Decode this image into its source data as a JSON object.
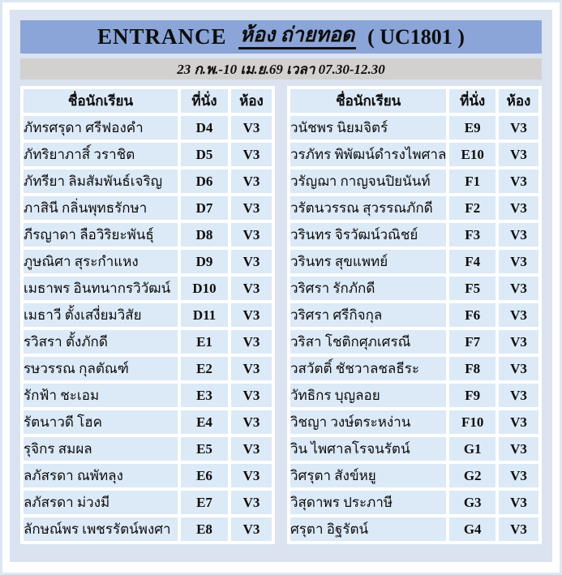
{
  "header": {
    "title_left": "ENTRANCE",
    "title_room": "ห้อง ถ่ายทอด",
    "title_code": "( UC1801 )",
    "schedule": "23 ก.พ.-10 เม.ย.69 เวลา 07.30-12.30"
  },
  "columns": {
    "name": "ชื่อนักเรียน",
    "seat": "ที่นั่ง",
    "room": "ห้อง"
  },
  "colors": {
    "title_band": "#8ba5d8",
    "schedule_band": "#d2d1d0",
    "panel_background": "#dae3ef",
    "cell_background": "#dce9f6",
    "outer_frame": "#dde7f2",
    "text": "#0d0d0d"
  },
  "tables": [
    {
      "rows": [
        {
          "name": "ภัทรศรุดา ศรีฟองคำ",
          "seat": "D4",
          "room": "V3"
        },
        {
          "name": "ภัทริยาภาสิ์ วราชิต",
          "seat": "D5",
          "room": "V3"
        },
        {
          "name": "ภัทรียา ลิมสัมพันธ์เจริญ",
          "seat": "D6",
          "room": "V3"
        },
        {
          "name": "ภาสินี กลิ่นพุทธรักษา",
          "seat": "D7",
          "room": "V3"
        },
        {
          "name": "ภีรญาดา ลือวิริยะพันธุ์",
          "seat": "D8",
          "room": "V3"
        },
        {
          "name": "ภูษณิศา สุระกำแหง",
          "seat": "D9",
          "room": "V3"
        },
        {
          "name": "เมธาพร อินทนากรวิวัฒน์",
          "seat": "D10",
          "room": "V3"
        },
        {
          "name": "เมธาวี ตั้งเสงี่ยมวิสัย",
          "seat": "D11",
          "room": "V3"
        },
        {
          "name": "รวิสรา ตั้งภักดี",
          "seat": "E1",
          "room": "V3"
        },
        {
          "name": "รษวรรณ กุลตัณฑ์",
          "seat": "E2",
          "room": "V3"
        },
        {
          "name": "รักฟ้า ชะเอม",
          "seat": "E3",
          "room": "V3"
        },
        {
          "name": "รัตนาวดี โฮค",
          "seat": "E4",
          "room": "V3"
        },
        {
          "name": "รุจิกร สมผล",
          "seat": "E5",
          "room": "V3"
        },
        {
          "name": "ลภัสรดา ณพัทลุง",
          "seat": "E6",
          "room": "V3"
        },
        {
          "name": "ลภัสรดา ม่วงมี",
          "seat": "E7",
          "room": "V3"
        },
        {
          "name": "ลักษณ์พร เพชรรัตน์พงศา",
          "seat": "E8",
          "room": "V3"
        }
      ]
    },
    {
      "rows": [
        {
          "name": "วนัชพร นิยมจิตร์",
          "seat": "E9",
          "room": "V3"
        },
        {
          "name": "วรภัทร พิพัฒน์ดำรงไพศาล",
          "seat": "E10",
          "room": "V3"
        },
        {
          "name": "วรัญฌา กาญจนปิยนันท์",
          "seat": "F1",
          "room": "V3"
        },
        {
          "name": "วรัตนวรรณ สุวรรณภักดี",
          "seat": "F2",
          "room": "V3"
        },
        {
          "name": "วรินทร จิรวัฒน์วณิชย์",
          "seat": "F3",
          "room": "V3"
        },
        {
          "name": "วรินทร สุขแพทย์",
          "seat": "F4",
          "room": "V3"
        },
        {
          "name": "วริศรา รักภักดี",
          "seat": "F5",
          "room": "V3"
        },
        {
          "name": "วริศรา ศรีกิจกุล",
          "seat": "F6",
          "room": "V3"
        },
        {
          "name": "วริสา โชติกศุภเศรณี",
          "seat": "F7",
          "room": "V3"
        },
        {
          "name": "วสวัตติ์ ชัชวาลชลธีระ",
          "seat": "F8",
          "room": "V3"
        },
        {
          "name": "วัทธิกร บุญลอย",
          "seat": "F9",
          "room": "V3"
        },
        {
          "name": "วิชญา วงษ์ตระหง่าน",
          "seat": "F10",
          "room": "V3"
        },
        {
          "name": "วิน ไพศาลโรจนรัตน์",
          "seat": "G1",
          "room": "V3"
        },
        {
          "name": "วิศรุตา สังข์หยู",
          "seat": "G2",
          "room": "V3"
        },
        {
          "name": "วิสุดาพร ประภาษี",
          "seat": "G3",
          "room": "V3"
        },
        {
          "name": "ศรุตา อิฐรัตน์",
          "seat": "G4",
          "room": "V3"
        }
      ]
    }
  ]
}
